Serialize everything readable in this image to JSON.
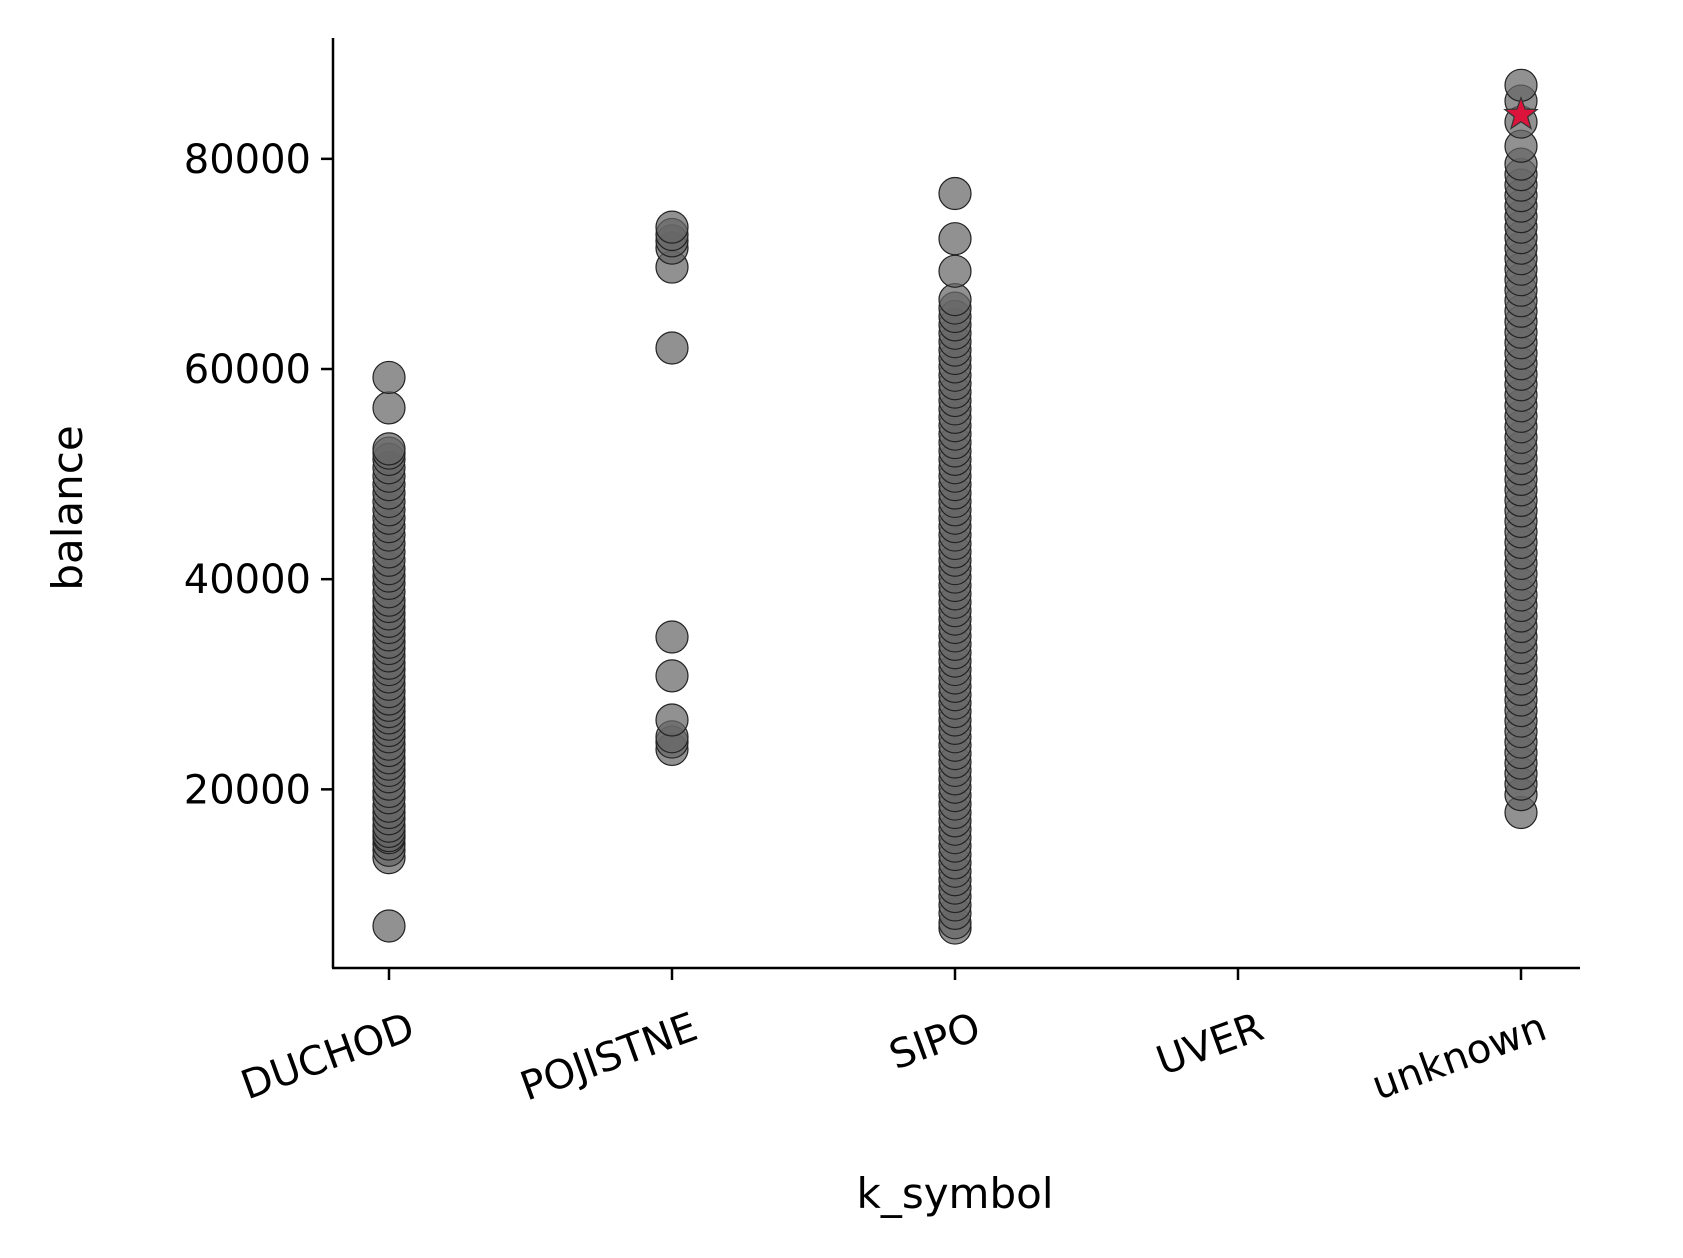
{
  "chart_data": {
    "type": "scatter",
    "xlabel": "k_symbol",
    "ylabel": "balance",
    "categories": [
      "DUCHOD",
      "POJISTNE",
      "SIPO",
      "UVER",
      "unknown"
    ],
    "ylim": [
      3000,
      91500
    ],
    "yticks": [
      20000,
      40000,
      60000,
      80000
    ],
    "grid": false,
    "point_color": "#666666",
    "point_edge_color": "#222222",
    "highlight_color": "#dc143c",
    "series": [
      {
        "category": "DUCHOD",
        "values": [
          7000,
          13500,
          14200,
          14800,
          15400,
          15600,
          16000,
          16500,
          17200,
          17800,
          18400,
          19200,
          19800,
          20500,
          21200,
          21800,
          22400,
          23000,
          23700,
          24300,
          25000,
          25600,
          26200,
          26800,
          27400,
          28000,
          28600,
          29300,
          30000,
          30700,
          31400,
          32000,
          32700,
          33400,
          34000,
          34700,
          35400,
          36000,
          36700,
          37400,
          38000,
          38800,
          39600,
          40300,
          41000,
          41800,
          42600,
          43400,
          44200,
          45000,
          45800,
          46600,
          47400,
          48200,
          49000,
          49800,
          50600,
          51400,
          52000,
          52400,
          56300,
          59200
        ]
      },
      {
        "category": "POJISTNE",
        "values": [
          23800,
          24500,
          25000,
          26600,
          30800,
          34500,
          62000,
          69700,
          71500,
          72200,
          72800,
          73500
        ]
      },
      {
        "category": "SIPO",
        "values": [
          6800,
          7300,
          8200,
          9000,
          9800,
          10600,
          11400,
          12200,
          13000,
          13800,
          14600,
          15400,
          16200,
          17000,
          17800,
          18600,
          19400,
          20200,
          21000,
          21800,
          22600,
          23400,
          24200,
          25000,
          25800,
          26600,
          27400,
          28200,
          29000,
          29800,
          30600,
          31400,
          32200,
          33000,
          33800,
          34600,
          35400,
          36200,
          37000,
          37800,
          38600,
          39400,
          40200,
          41000,
          41800,
          42600,
          43400,
          44200,
          45000,
          45800,
          46600,
          47400,
          48200,
          49000,
          49800,
          50600,
          51400,
          52200,
          53000,
          53800,
          54600,
          55400,
          56200,
          57000,
          57800,
          58600,
          59400,
          60200,
          61000,
          61800,
          62600,
          63400,
          64200,
          65000,
          65800,
          66600,
          69300,
          72400,
          76700
        ]
      },
      {
        "category": "UVER",
        "values": []
      },
      {
        "category": "unknown",
        "values": [
          17800,
          19500,
          20500,
          21500,
          22500,
          23500,
          24500,
          25500,
          26500,
          27500,
          28500,
          29500,
          30500,
          31500,
          32500,
          33500,
          34500,
          35500,
          36500,
          37500,
          38500,
          39500,
          40500,
          41500,
          42500,
          43500,
          44500,
          45500,
          46500,
          47500,
          48500,
          49500,
          50500,
          51500,
          52500,
          53500,
          54500,
          55500,
          56500,
          57500,
          58500,
          59500,
          60500,
          61500,
          62500,
          63500,
          64500,
          65500,
          66500,
          67500,
          68500,
          69500,
          70500,
          71500,
          72500,
          73500,
          74500,
          75500,
          76500,
          77500,
          78500,
          79500,
          81200,
          83500,
          85500,
          87000
        ]
      }
    ],
    "highlight": {
      "category": "unknown",
      "value": 84200,
      "marker": "star"
    }
  }
}
